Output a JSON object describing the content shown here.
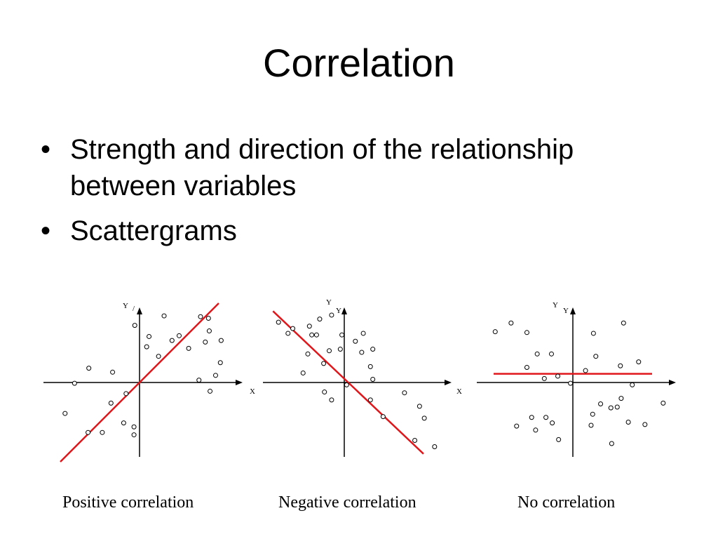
{
  "slide": {
    "title": "Correlation",
    "bullets": [
      "Strength and direction of the relationship between variables",
      "Scattergrams"
    ]
  },
  "chart_data": [
    {
      "type": "scatter",
      "title": "Positive correlation",
      "xlabel": "X",
      "ylabel": "Y",
      "trend_line": "positive",
      "colors": {
        "points": "#000000",
        "trend": "#e0161b",
        "axes": "#000000"
      },
      "points": [
        [
          -9.4,
          -3.9
        ],
        [
          -8.2,
          -0.1
        ],
        [
          -6.5,
          -6.3
        ],
        [
          -6.4,
          1.8
        ],
        [
          -4.7,
          -6.3
        ],
        [
          -3.6,
          -2.6
        ],
        [
          -3.4,
          1.3
        ],
        [
          -2.0,
          -5.1
        ],
        [
          -1.7,
          -1.4
        ],
        [
          -0.7,
          -6.6
        ],
        [
          -0.7,
          -5.6
        ],
        [
          -0.6,
          7.2
        ],
        [
          0.9,
          4.5
        ],
        [
          1.2,
          5.8
        ],
        [
          2.4,
          3.3
        ],
        [
          3.1,
          8.4
        ],
        [
          4.1,
          5.3
        ],
        [
          5.0,
          5.9
        ],
        [
          6.2,
          4.3
        ],
        [
          7.5,
          0.3
        ],
        [
          8.3,
          5.1
        ],
        [
          8.8,
          6.5
        ],
        [
          7.7,
          8.3
        ],
        [
          9.6,
          0.9
        ],
        [
          10.3,
          5.3
        ],
        [
          8.7,
          8.1
        ],
        [
          10.2,
          2.5
        ],
        [
          8.9,
          -1.1
        ]
      ],
      "trend": [
        [
          -10,
          -10
        ],
        [
          10,
          10
        ]
      ]
    },
    {
      "type": "scatter",
      "title": "Negative correlation",
      "xlabel": "X",
      "ylabel": "Y",
      "trend_line": "negative",
      "colors": {
        "points": "#000000",
        "trend": "#e0161b",
        "axes": "#000000"
      },
      "points": [
        [
          -8.3,
          7.6
        ],
        [
          -7.1,
          6.2
        ],
        [
          -6.5,
          6.8
        ],
        [
          -5.2,
          1.2
        ],
        [
          -4.6,
          3.6
        ],
        [
          -4.1,
          6.0
        ],
        [
          -4.4,
          7.1
        ],
        [
          -3.5,
          6.0
        ],
        [
          -3.1,
          8.0
        ],
        [
          -2.6,
          2.4
        ],
        [
          -2.5,
          -1.2
        ],
        [
          -1.9,
          4.0
        ],
        [
          -1.6,
          -2.2
        ],
        [
          -1.6,
          8.5
        ],
        [
          -0.3,
          6.0
        ],
        [
          -0.5,
          4.2
        ],
        [
          0.3,
          -0.3
        ],
        [
          1.4,
          5.2
        ],
        [
          2.2,
          3.8
        ],
        [
          2.4,
          6.2
        ],
        [
          3.3,
          -2.2
        ],
        [
          3.6,
          4.2
        ],
        [
          3.3,
          2.0
        ],
        [
          3.6,
          0.4
        ],
        [
          4.9,
          -4.3
        ],
        [
          7.6,
          -1.3
        ],
        [
          9.5,
          -3.0
        ],
        [
          8.9,
          -7.3
        ],
        [
          10.1,
          -4.5
        ],
        [
          11.4,
          -8.1
        ]
      ],
      "trend": [
        [
          -9,
          9
        ],
        [
          10,
          -9
        ]
      ]
    },
    {
      "type": "scatter",
      "title": "No correlation",
      "xlabel": "",
      "ylabel": "Y",
      "trend_line": "flat",
      "colors": {
        "points": "#000000",
        "trend": "#e0161b",
        "axes": "#000000"
      },
      "points": [
        [
          -9.8,
          6.4
        ],
        [
          -7.8,
          7.5
        ],
        [
          -5.8,
          6.3
        ],
        [
          -4.5,
          3.6
        ],
        [
          -2.7,
          3.6
        ],
        [
          -5.2,
          -4.4
        ],
        [
          -3.4,
          -4.4
        ],
        [
          -2.6,
          -5.1
        ],
        [
          -5.8,
          1.9
        ],
        [
          -3.6,
          0.5
        ],
        [
          -1.9,
          0.8
        ],
        [
          -0.3,
          -0.1
        ],
        [
          1.6,
          1.5
        ],
        [
          2.5,
          -4.0
        ],
        [
          2.3,
          -5.4
        ],
        [
          2.6,
          6.2
        ],
        [
          2.9,
          3.3
        ],
        [
          3.5,
          -2.7
        ],
        [
          4.8,
          -3.2
        ],
        [
          5.6,
          -3.1
        ],
        [
          6.0,
          2.1
        ],
        [
          6.1,
          -2.0
        ],
        [
          6.4,
          7.5
        ],
        [
          7.0,
          -5.0
        ],
        [
          7.5,
          -0.3
        ],
        [
          8.3,
          2.6
        ],
        [
          9.1,
          -5.3
        ],
        [
          4.9,
          -7.7
        ],
        [
          -1.8,
          -7.2
        ],
        [
          11.4,
          -2.6
        ],
        [
          -7.1,
          -5.5
        ],
        [
          -4.7,
          -6.0
        ]
      ],
      "trend": [
        [
          -10,
          1.1
        ],
        [
          10,
          1.1
        ]
      ]
    }
  ],
  "captions": [
    "Positive correlation",
    "Negative correlation",
    "No correlation"
  ],
  "plot_labels": {
    "p1": {
      "y": "Y",
      "y_extra": "/",
      "x": "X"
    },
    "p2": {
      "y_top": "Y",
      "y": "Y",
      "x": "X"
    },
    "p3": {
      "y_top": "Y",
      "y": "Y"
    }
  }
}
